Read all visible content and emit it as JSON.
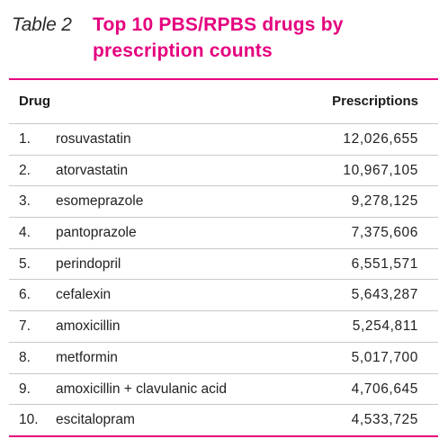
{
  "table": {
    "label": "Table 2",
    "title_line1": "Top 10 PBS/RPBS drugs by",
    "title_line2": "prescription counts",
    "columns": {
      "drug": "Drug",
      "prescriptions": "Prescriptions"
    },
    "rows": [
      {
        "rank": "1.",
        "drug": "rosuvastatin",
        "prescriptions": "12,026,655"
      },
      {
        "rank": "2.",
        "drug": "atorvastatin",
        "prescriptions": "10,967,105"
      },
      {
        "rank": "3.",
        "drug": "esomeprazole",
        "prescriptions": "9,278,125"
      },
      {
        "rank": "4.",
        "drug": "pantoprazole",
        "prescriptions": "7,375,606"
      },
      {
        "rank": "5.",
        "drug": "perindopril",
        "prescriptions": "6,551,571"
      },
      {
        "rank": "6.",
        "drug": "cefalexin",
        "prescriptions": "5,643,287"
      },
      {
        "rank": "7.",
        "drug": "amoxicillin",
        "prescriptions": "5,254,811"
      },
      {
        "rank": "8.",
        "drug": "metformin",
        "prescriptions": "5,017,700"
      },
      {
        "rank": "9.",
        "drug": "amoxicillin + clavulanic acid",
        "prescriptions": "4,706,645"
      },
      {
        "rank": "10.",
        "drug": "escitalopram",
        "prescriptions": "4,533,725"
      }
    ]
  },
  "colors": {
    "accent": "#e5007e",
    "text": "#1a1a1a",
    "divider": "#c9c9c9"
  }
}
